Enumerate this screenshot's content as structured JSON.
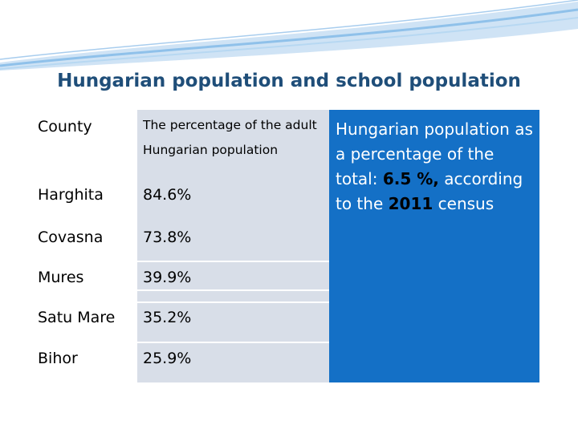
{
  "slide": {
    "title": "Hungarian population  and school population"
  },
  "table": {
    "headers": {
      "county": "County",
      "percentage": "The percentage of the adult Hungarian population"
    },
    "rows": [
      {
        "county": "Harghita",
        "value": "84.6%"
      },
      {
        "county": "Covasna",
        "value": "73.8%"
      },
      {
        "county": "Mures",
        "value": "39.9%"
      },
      {
        "county": "Satu Mare",
        "value": "35.2%"
      },
      {
        "county": "Bihor",
        "value": "25.9%"
      }
    ]
  },
  "info": {
    "prefix": "Hungarian population as a percentage of the total: ",
    "percent": "6.5 %,",
    "middle": " according to the ",
    "year": "2011",
    "suffix": " census"
  },
  "colors": {
    "title": "#1f4e79",
    "info_box": "#1470c6",
    "table_bg": "#d8dee8",
    "wave_light": "#cfe3f5",
    "wave_mid": "#8fc1ea"
  }
}
